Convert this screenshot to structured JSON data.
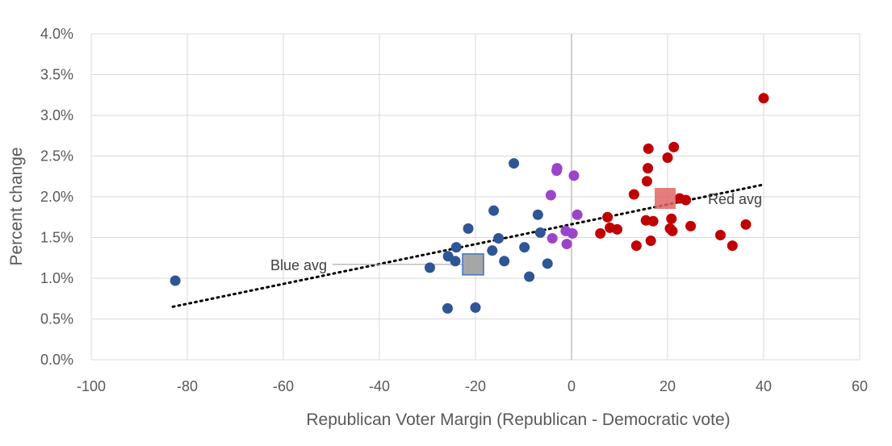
{
  "chart_data": {
    "type": "scatter",
    "title": "",
    "xlabel": "Republican Voter Margin (Republican - Democratic vote)",
    "ylabel": "Percent change",
    "xlim": [
      -100,
      60
    ],
    "ylim": [
      0,
      4.0
    ],
    "x_ticks": [
      -100,
      -80,
      -60,
      -40,
      -20,
      0,
      20,
      40,
      60
    ],
    "y_ticks": [
      0,
      0.5,
      1.0,
      1.5,
      2.0,
      2.5,
      3.0,
      3.5,
      4.0
    ],
    "x_tick_labels": [
      "-100",
      "-80",
      "-60",
      "-40",
      "-20",
      "0",
      "20",
      "40",
      "60"
    ],
    "y_tick_labels": [
      "0.0%",
      "0.5%",
      "1.0%",
      "1.5%",
      "2.0%",
      "2.5%",
      "3.0%",
      "3.5%",
      "4.0%"
    ],
    "grid": true,
    "legend": "none",
    "series": [
      {
        "color": "#2f5597",
        "points": [
          {
            "x": -82.5,
            "y": 0.97
          },
          {
            "x": -29.5,
            "y": 1.13
          },
          {
            "x": -25.8,
            "y": 0.63
          },
          {
            "x": -25.7,
            "y": 1.27
          },
          {
            "x": -24.2,
            "y": 1.21
          },
          {
            "x": -24.0,
            "y": 1.38
          },
          {
            "x": -21.5,
            "y": 1.61
          },
          {
            "x": -20.0,
            "y": 0.64
          },
          {
            "x": -16.5,
            "y": 1.34
          },
          {
            "x": -16.2,
            "y": 1.83
          },
          {
            "x": -15.2,
            "y": 1.49
          },
          {
            "x": -14.0,
            "y": 1.21
          },
          {
            "x": -12.0,
            "y": 2.41
          },
          {
            "x": -9.8,
            "y": 1.38
          },
          {
            "x": -8.8,
            "y": 1.02
          },
          {
            "x": -7.0,
            "y": 1.78
          },
          {
            "x": -6.5,
            "y": 1.56
          },
          {
            "x": -5.0,
            "y": 1.18
          }
        ]
      },
      {
        "color": "#9b44c9",
        "points": [
          {
            "x": -4.3,
            "y": 2.02
          },
          {
            "x": -4.0,
            "y": 1.49
          },
          {
            "x": -3.1,
            "y": 2.32
          },
          {
            "x": -3.0,
            "y": 2.35
          },
          {
            "x": -1.2,
            "y": 1.58
          },
          {
            "x": -1.0,
            "y": 1.42
          },
          {
            "x": 0.2,
            "y": 1.55
          },
          {
            "x": 0.5,
            "y": 2.26
          },
          {
            "x": 1.2,
            "y": 1.78
          }
        ]
      },
      {
        "color": "#c00000",
        "points": [
          {
            "x": 6.0,
            "y": 1.55
          },
          {
            "x": 7.5,
            "y": 1.75
          },
          {
            "x": 8.0,
            "y": 1.62
          },
          {
            "x": 9.5,
            "y": 1.6
          },
          {
            "x": 13.0,
            "y": 2.03
          },
          {
            "x": 13.5,
            "y": 1.4
          },
          {
            "x": 15.5,
            "y": 1.71
          },
          {
            "x": 15.7,
            "y": 2.19
          },
          {
            "x": 15.9,
            "y": 2.35
          },
          {
            "x": 16.0,
            "y": 2.59
          },
          {
            "x": 16.5,
            "y": 1.46
          },
          {
            "x": 17.0,
            "y": 1.7
          },
          {
            "x": 20.0,
            "y": 2.48
          },
          {
            "x": 20.5,
            "y": 1.61
          },
          {
            "x": 20.8,
            "y": 1.73
          },
          {
            "x": 21.0,
            "y": 1.58
          },
          {
            "x": 21.3,
            "y": 2.61
          },
          {
            "x": 22.5,
            "y": 1.98
          },
          {
            "x": 23.8,
            "y": 1.96
          },
          {
            "x": 24.8,
            "y": 1.64
          },
          {
            "x": 31.0,
            "y": 1.53
          },
          {
            "x": 33.5,
            "y": 1.4
          },
          {
            "x": 36.3,
            "y": 1.66
          },
          {
            "x": 40.0,
            "y": 3.21
          }
        ]
      }
    ],
    "averages": [
      {
        "label": "Blue avg",
        "x": -20.5,
        "y": 1.17,
        "fill": "#a6a6a6",
        "stroke": "#4472c4"
      },
      {
        "label": "Red avg",
        "x": 19.5,
        "y": 1.98,
        "fill": "#e06666",
        "stroke": "none"
      }
    ],
    "trendline": {
      "type": "linear",
      "x_start": -83,
      "x_end": 40,
      "y_start": 0.65,
      "y_end": 2.15
    }
  }
}
